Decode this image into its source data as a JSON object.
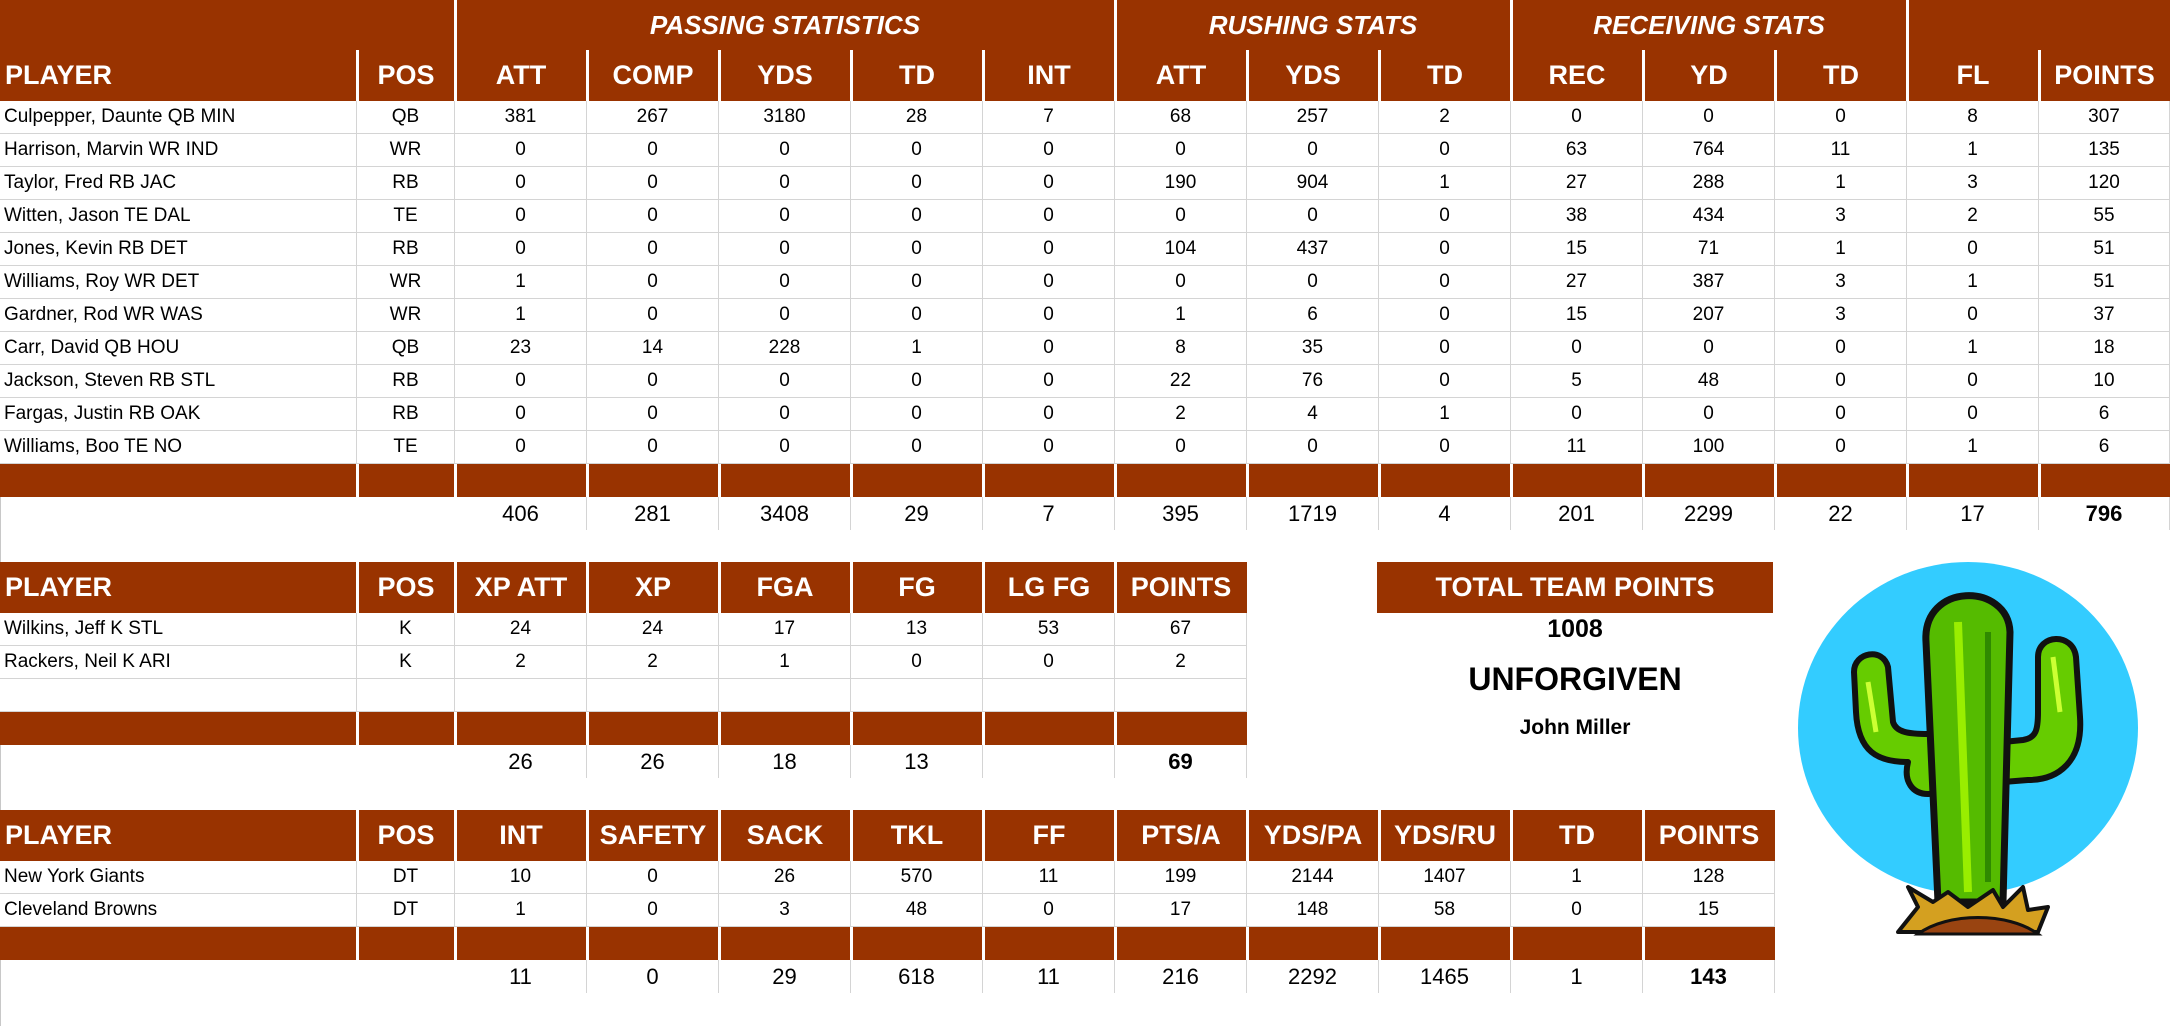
{
  "colors": {
    "header_bg": "#993300",
    "header_text": "#ffffff",
    "grid": "#d4d4d4",
    "logo_sky": "#33ccff"
  },
  "offense": {
    "groups": [
      {
        "label": "PASSING STATISTICS"
      },
      {
        "label": "RUSHING STATS"
      },
      {
        "label": "RECEIVING STATS"
      }
    ],
    "columns": [
      "PLAYER",
      "POS",
      "ATT",
      "COMP",
      "YDS",
      "TD",
      "INT",
      "ATT",
      "YDS",
      "TD",
      "REC",
      "YD",
      "TD",
      "FL",
      "POINTS"
    ],
    "rows": [
      [
        "Culpepper, Daunte QB MIN",
        "QB",
        "381",
        "267",
        "3180",
        "28",
        "7",
        "68",
        "257",
        "2",
        "0",
        "0",
        "0",
        "8",
        "307"
      ],
      [
        "Harrison, Marvin WR IND",
        "WR",
        "0",
        "0",
        "0",
        "0",
        "0",
        "0",
        "0",
        "0",
        "63",
        "764",
        "11",
        "1",
        "135"
      ],
      [
        "Taylor, Fred RB JAC",
        "RB",
        "0",
        "0",
        "0",
        "0",
        "0",
        "190",
        "904",
        "1",
        "27",
        "288",
        "1",
        "3",
        "120"
      ],
      [
        "Witten, Jason TE DAL",
        "TE",
        "0",
        "0",
        "0",
        "0",
        "0",
        "0",
        "0",
        "0",
        "38",
        "434",
        "3",
        "2",
        "55"
      ],
      [
        "Jones, Kevin RB DET",
        "RB",
        "0",
        "0",
        "0",
        "0",
        "0",
        "104",
        "437",
        "0",
        "15",
        "71",
        "1",
        "0",
        "51"
      ],
      [
        "Williams, Roy WR DET",
        "WR",
        "1",
        "0",
        "0",
        "0",
        "0",
        "0",
        "0",
        "0",
        "27",
        "387",
        "3",
        "1",
        "51"
      ],
      [
        "Gardner, Rod WR WAS",
        "WR",
        "1",
        "0",
        "0",
        "0",
        "0",
        "1",
        "6",
        "0",
        "15",
        "207",
        "3",
        "0",
        "37"
      ],
      [
        "Carr, David QB HOU",
        "QB",
        "23",
        "14",
        "228",
        "1",
        "0",
        "8",
        "35",
        "0",
        "0",
        "0",
        "0",
        "1",
        "18"
      ],
      [
        "Jackson, Steven RB STL",
        "RB",
        "0",
        "0",
        "0",
        "0",
        "0",
        "22",
        "76",
        "0",
        "5",
        "48",
        "0",
        "0",
        "10"
      ],
      [
        "Fargas, Justin RB OAK",
        "RB",
        "0",
        "0",
        "0",
        "0",
        "0",
        "2",
        "4",
        "1",
        "0",
        "0",
        "0",
        "0",
        "6"
      ],
      [
        "Williams, Boo TE NO",
        "TE",
        "0",
        "0",
        "0",
        "0",
        "0",
        "0",
        "0",
        "0",
        "11",
        "100",
        "0",
        "1",
        "6"
      ]
    ],
    "totals": [
      "",
      "",
      "406",
      "281",
      "3408",
      "29",
      "7",
      "395",
      "1719",
      "4",
      "201",
      "2299",
      "22",
      "17",
      "796"
    ]
  },
  "kickers": {
    "columns": [
      "PLAYER",
      "POS",
      "XP ATT",
      "XP",
      "FGA",
      "FG",
      "LG FG",
      "POINTS"
    ],
    "rows": [
      [
        "Wilkins, Jeff K STL",
        "K",
        "24",
        "24",
        "17",
        "13",
        "53",
        "67"
      ],
      [
        "Rackers, Neil K ARI",
        "K",
        "2",
        "2",
        "1",
        "0",
        "0",
        "2"
      ],
      [
        "",
        "",
        "",
        "",
        "",
        "",
        "",
        ""
      ]
    ],
    "totals": [
      "",
      "",
      "26",
      "26",
      "18",
      "13",
      "",
      "69"
    ]
  },
  "defense": {
    "columns": [
      "PLAYER",
      "POS",
      "INT",
      "SAFETY",
      "SACK",
      "TKL",
      "FF",
      "PTS/A",
      "YDS/PA",
      "YDS/RU",
      "TD",
      "POINTS"
    ],
    "rows": [
      [
        "New York Giants",
        "DT",
        "10",
        "0",
        "26",
        "570",
        "11",
        "199",
        "2144",
        "1407",
        "1",
        "128"
      ],
      [
        "Cleveland Browns",
        "DT",
        "1",
        "0",
        "3",
        "48",
        "0",
        "17",
        "148",
        "58",
        "0",
        "15"
      ]
    ],
    "totals": [
      "",
      "",
      "11",
      "0",
      "29",
      "618",
      "11",
      "216",
      "2292",
      "1465",
      "1",
      "143"
    ]
  },
  "team": {
    "total_label": "TOTAL TEAM POINTS",
    "total_points": "1008",
    "name": "UNFORGIVEN",
    "owner": "John Miller",
    "logo_icon": "cactus-icon"
  }
}
